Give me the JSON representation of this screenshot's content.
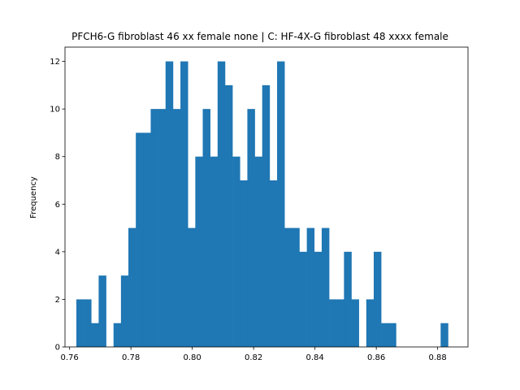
{
  "chart_data": {
    "type": "bar",
    "title": "PFCH6-G fibroblast 46 xx female none | C: HF-4X-G fibroblast 48 xxxx female",
    "xlabel": "",
    "ylabel": "Frequency",
    "xlim": [
      0.7585,
      0.8899
    ],
    "ylim": [
      0,
      12.6
    ],
    "xticks": [
      0.76,
      0.78,
      0.8,
      0.82,
      0.84,
      0.86,
      0.88
    ],
    "xtick_labels": [
      "0.76",
      "0.78",
      "0.80",
      "0.82",
      "0.84",
      "0.86",
      "0.88"
    ],
    "yticks": [
      0,
      2,
      4,
      6,
      8,
      10,
      12
    ],
    "ytick_labels": [
      "0",
      "2",
      "4",
      "6",
      "8",
      "10",
      "12"
    ],
    "bin_start": 0.7622,
    "bin_width": 0.002424,
    "values": [
      2,
      2,
      1,
      3,
      0,
      1,
      3,
      5,
      9,
      9,
      10,
      10,
      12,
      10,
      12,
      5,
      8,
      10,
      8,
      12,
      11,
      8,
      7,
      10,
      8,
      11,
      7,
      12,
      5,
      5,
      4,
      5,
      4,
      5,
      2,
      2,
      4,
      2,
      0,
      2,
      4,
      1,
      1,
      0,
      0,
      0,
      0,
      0,
      0,
      1
    ],
    "bar_color": "#1f77b4",
    "grid": false,
    "legend": "none"
  }
}
